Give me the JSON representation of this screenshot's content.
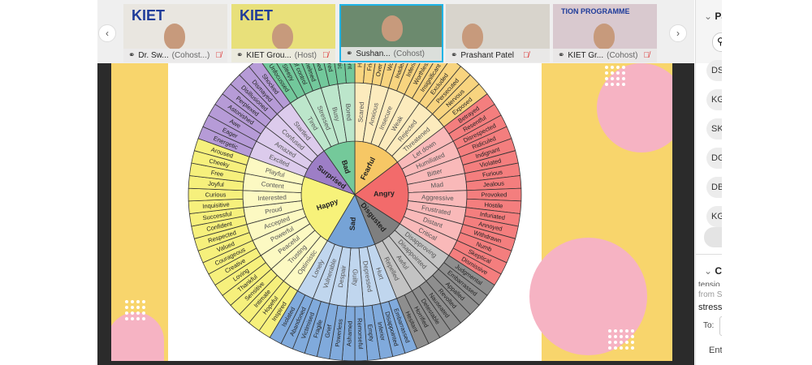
{
  "participants_strip": {
    "prev_icon": "chevron-left-icon",
    "next_icon": "chevron-right-icon",
    "tiles": [
      {
        "name": "Dr. Sw...",
        "role": "(Cohost...)",
        "muted": true,
        "bg": "#e9e6e0",
        "logo": "KIET"
      },
      {
        "name": "KIET Grou...",
        "role": "(Host)",
        "muted": true,
        "bg": "#e8e07a",
        "logo": "KIET"
      },
      {
        "name": "Sushan...",
        "role": "(Cohost)",
        "muted": false,
        "active": true,
        "bg": "#6c8a6e",
        "logo": ""
      },
      {
        "name": "Prashant Patel",
        "role": "",
        "muted": true,
        "bg": "#d8d4cc",
        "logo": ""
      },
      {
        "name": "KIET Gr...",
        "role": "(Cohost)",
        "muted": true,
        "bg": "#d9c9cf",
        "logo": "TION PROGRAMME"
      }
    ]
  },
  "side_panel": {
    "participants_header": "Pa",
    "avatars": [
      "DS",
      "KG",
      "SK",
      "DG",
      "DB",
      "KG"
    ],
    "chat_header": "Ch",
    "chat_lines": [
      "tensio",
      "from S",
      "stress"
    ],
    "to_label": "To:",
    "input_placeholder": "Ent"
  },
  "feelings_wheel": {
    "colors": {
      "Fearful": [
        "#f6c765",
        "#fcebbd",
        "#f8d47f"
      ],
      "Angry": [
        "#f26b6b",
        "#f9b9b9",
        "#f47e7e"
      ],
      "Disgusted": [
        "#7f7f7f",
        "#c3c3c3",
        "#8e8e8e"
      ],
      "Sad": [
        "#76a3d6",
        "#c0d6ee",
        "#80aadc"
      ],
      "Happy": [
        "#f7f27a",
        "#fcf9c2",
        "#f6f07c"
      ],
      "Surprised": [
        "#9d7ec6",
        "#dccbec",
        "#b69bd7"
      ],
      "Bad": [
        "#74c99a",
        "#bce6cb",
        "#72c89b"
      ]
    },
    "core": [
      {
        "name": "Fearful",
        "mid": [
          {
            "name": "Scared",
            "outer": [
              "Helpless",
              "Frightened"
            ]
          },
          {
            "name": "Anxious",
            "outer": [
              "Overwhelmed",
              "Worried"
            ]
          },
          {
            "name": "Insecure",
            "outer": [
              "Inadequate",
              "Inferior"
            ]
          },
          {
            "name": "Weak",
            "outer": [
              "Worthless",
              "Insignificant"
            ]
          },
          {
            "name": "Rejected",
            "outer": [
              "Excluded",
              "Persecuted"
            ]
          },
          {
            "name": "Threatened",
            "outer": [
              "Nervous",
              "Exposed"
            ]
          }
        ]
      },
      {
        "name": "Angry",
        "mid": [
          {
            "name": "Let down",
            "outer": [
              "Betrayed",
              "Resentful"
            ]
          },
          {
            "name": "Humiliated",
            "outer": [
              "Disrespected",
              "Ridiculed"
            ]
          },
          {
            "name": "Bitter",
            "outer": [
              "Indignant",
              "Violated"
            ]
          },
          {
            "name": "Mad",
            "outer": [
              "Furious",
              "Jealous"
            ]
          },
          {
            "name": "Aggressive",
            "outer": [
              "Provoked",
              "Hostile"
            ]
          },
          {
            "name": "Frustrated",
            "outer": [
              "Infuriated",
              "Annoyed"
            ]
          },
          {
            "name": "Distant",
            "outer": [
              "Withdrawn",
              "Numb"
            ]
          },
          {
            "name": "Critical",
            "outer": [
              "Skeptical",
              "Dismissive"
            ]
          }
        ]
      },
      {
        "name": "Disgusted",
        "mid": [
          {
            "name": "Disapproving",
            "outer": [
              "Judgmental",
              "Embarrassed"
            ]
          },
          {
            "name": "Disappointed",
            "outer": [
              "Appalled",
              "Revolted"
            ]
          },
          {
            "name": "Awful",
            "outer": [
              "Nauseated",
              "Detestable"
            ]
          },
          {
            "name": "Repelled",
            "outer": [
              "Horrified",
              "Hesitant"
            ]
          }
        ]
      },
      {
        "name": "Sad",
        "mid": [
          {
            "name": "Hurt",
            "outer": [
              "Embarrassed",
              "Disappointed"
            ]
          },
          {
            "name": "Depressed",
            "outer": [
              "Inferior",
              "Empty"
            ]
          },
          {
            "name": "Guilty",
            "outer": [
              "Remorseful",
              "Ashamed"
            ]
          },
          {
            "name": "Despair",
            "outer": [
              "Powerless",
              "Grief"
            ]
          },
          {
            "name": "Vulnerable",
            "outer": [
              "Fragile",
              "Victimised"
            ]
          },
          {
            "name": "Lonely",
            "outer": [
              "Abandoned",
              "Isolated"
            ]
          }
        ]
      },
      {
        "name": "Happy",
        "mid": [
          {
            "name": "Optimistic",
            "outer": [
              "Inspired",
              "Hopeful"
            ]
          },
          {
            "name": "Trusting",
            "outer": [
              "Intimate",
              "Sensitive"
            ]
          },
          {
            "name": "Peaceful",
            "outer": [
              "Thankful",
              "Loving"
            ]
          },
          {
            "name": "Powerful",
            "outer": [
              "Creative",
              "Courageous"
            ]
          },
          {
            "name": "Accepted",
            "outer": [
              "Valued",
              "Respected"
            ]
          },
          {
            "name": "Proud",
            "outer": [
              "Confident",
              "Successful"
            ]
          },
          {
            "name": "Interested",
            "outer": [
              "Inquisitive",
              "Curious"
            ]
          },
          {
            "name": "Content",
            "outer": [
              "Joyful",
              "Free"
            ]
          },
          {
            "name": "Playful",
            "outer": [
              "Cheeky",
              "Aroused"
            ]
          }
        ]
      },
      {
        "name": "Surprised",
        "mid": [
          {
            "name": "Excited",
            "outer": [
              "Energetic",
              "Eager"
            ]
          },
          {
            "name": "Amazed",
            "outer": [
              "Awe",
              "Astonished"
            ]
          },
          {
            "name": "Confused",
            "outer": [
              "Perplexed",
              "Disillusioned"
            ]
          },
          {
            "name": "Startled",
            "outer": [
              "Dismayed",
              "Shocked"
            ]
          }
        ]
      },
      {
        "name": "Bad",
        "mid": [
          {
            "name": "Tired",
            "outer": [
              "Unfocussed",
              "Sleepy"
            ]
          },
          {
            "name": "Stressed",
            "outer": [
              "Out of control",
              "Overwhelmed"
            ]
          },
          {
            "name": "Busy",
            "outer": [
              "Rushed",
              "Pressured"
            ]
          },
          {
            "name": "Bored",
            "outer": [
              "Apathetic",
              "Indifferent"
            ]
          }
        ]
      }
    ]
  },
  "slide_colors": {
    "yellow": "#f8d56c",
    "pink": "#f6b3c3"
  }
}
